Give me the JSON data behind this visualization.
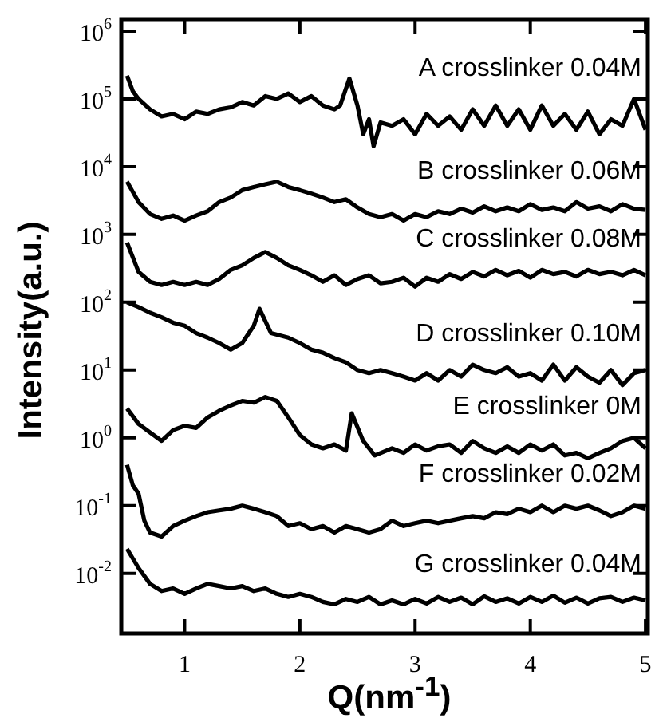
{
  "chart_data": {
    "type": "line",
    "xlabel": "Q(nm$^{-1}$)",
    "ylabel": "Intensity(a.u.)",
    "log": "y",
    "grid": false,
    "legend": "right",
    "marker": "none",
    "line_style": "solid",
    "xlim": [
      0.45,
      5.02
    ],
    "xticks": [
      1,
      2,
      3,
      4,
      5
    ],
    "ylim": [
      0.0013,
      1500000
    ],
    "yticks": [
      {
        "value": 0.01,
        "label": "10$^{-2}$"
      },
      {
        "value": 0.1,
        "label": "10$^{-1}$"
      },
      {
        "value": 1,
        "label": "10$^{0}$"
      },
      {
        "value": 10,
        "label": "10$^{1}$"
      },
      {
        "value": 100,
        "label": "10$^{2}$"
      },
      {
        "value": 1000,
        "label": "10$^{3}$"
      },
      {
        "value": 10000,
        "label": "10$^{4}$"
      },
      {
        "value": 100000,
        "label": "10$^{5}$"
      },
      {
        "value": 1000000,
        "label": "10$^{6}$"
      }
    ],
    "series": [
      {
        "name": "A crosslinker 0.04M",
        "color": "#000000",
        "x": [
          0.5,
          0.55,
          0.6,
          0.7,
          0.8,
          0.9,
          1.0,
          1.1,
          1.2,
          1.3,
          1.4,
          1.5,
          1.6,
          1.7,
          1.8,
          1.9,
          2.0,
          2.1,
          2.2,
          2.3,
          2.35,
          2.43,
          2.5,
          2.55,
          2.6,
          2.64,
          2.7,
          2.8,
          2.9,
          3.0,
          3.1,
          3.2,
          3.3,
          3.4,
          3.5,
          3.6,
          3.7,
          3.8,
          3.9,
          4.0,
          4.1,
          4.2,
          4.3,
          4.4,
          4.5,
          4.6,
          4.7,
          4.8,
          4.9,
          5.0
        ],
        "values": [
          220000,
          130000,
          100000,
          70000,
          55000,
          60000,
          50000,
          65000,
          60000,
          70000,
          75000,
          90000,
          80000,
          110000,
          100000,
          120000,
          90000,
          110000,
          80000,
          70000,
          80000,
          200000,
          80000,
          30000,
          50000,
          20000,
          45000,
          40000,
          50000,
          30000,
          60000,
          40000,
          55000,
          35000,
          70000,
          40000,
          80000,
          40000,
          70000,
          35000,
          80000,
          40000,
          60000,
          35000,
          65000,
          30000,
          50000,
          40000,
          100000,
          35000
        ]
      },
      {
        "name": "B crosslinker 0.06M",
        "color": "#000000",
        "x": [
          0.5,
          0.6,
          0.7,
          0.8,
          0.9,
          1.0,
          1.1,
          1.2,
          1.3,
          1.4,
          1.5,
          1.6,
          1.7,
          1.8,
          1.9,
          2.0,
          2.1,
          2.2,
          2.3,
          2.4,
          2.5,
          2.6,
          2.7,
          2.8,
          2.9,
          3.0,
          3.1,
          3.2,
          3.3,
          3.4,
          3.5,
          3.6,
          3.7,
          3.8,
          3.9,
          4.0,
          4.1,
          4.2,
          4.3,
          4.4,
          4.5,
          4.6,
          4.7,
          4.8,
          4.9,
          5.0
        ],
        "values": [
          6000,
          3000,
          2000,
          1700,
          1900,
          1600,
          1900,
          2200,
          3000,
          3500,
          4500,
          5000,
          5500,
          6000,
          5000,
          4500,
          4000,
          3500,
          3000,
          3300,
          2500,
          2000,
          1800,
          2000,
          1600,
          2000,
          1800,
          2200,
          2000,
          2400,
          2100,
          2600,
          2200,
          2500,
          2200,
          2800,
          2300,
          2500,
          2200,
          3000,
          2400,
          2600,
          2200,
          2800,
          2400,
          2300
        ]
      },
      {
        "name": "C crosslinker 0.08M",
        "color": "#000000",
        "x": [
          0.5,
          0.6,
          0.7,
          0.8,
          0.9,
          1.0,
          1.1,
          1.2,
          1.3,
          1.4,
          1.5,
          1.6,
          1.7,
          1.8,
          1.9,
          2.0,
          2.1,
          2.2,
          2.3,
          2.4,
          2.5,
          2.6,
          2.7,
          2.8,
          2.9,
          3.0,
          3.1,
          3.2,
          3.3,
          3.4,
          3.5,
          3.6,
          3.7,
          3.8,
          3.9,
          4.0,
          4.1,
          4.2,
          4.3,
          4.4,
          4.5,
          4.6,
          4.7,
          4.8,
          4.9,
          5.0
        ],
        "values": [
          760,
          280,
          200,
          180,
          200,
          180,
          200,
          180,
          220,
          300,
          350,
          450,
          550,
          450,
          350,
          300,
          250,
          200,
          250,
          180,
          220,
          250,
          190,
          200,
          230,
          170,
          230,
          200,
          260,
          220,
          280,
          240,
          300,
          250,
          290,
          230,
          300,
          260,
          280,
          240,
          300,
          260,
          280,
          250,
          300,
          250
        ]
      },
      {
        "name": "D crosslinker 0.10M",
        "color": "#000000",
        "x": [
          0.5,
          0.6,
          0.7,
          0.8,
          0.9,
          1.0,
          1.1,
          1.2,
          1.3,
          1.4,
          1.5,
          1.6,
          1.65,
          1.75,
          1.9,
          2.0,
          2.1,
          2.2,
          2.3,
          2.4,
          2.5,
          2.6,
          2.7,
          2.8,
          2.9,
          3.0,
          3.1,
          3.2,
          3.3,
          3.4,
          3.5,
          3.6,
          3.7,
          3.8,
          3.9,
          4.0,
          4.1,
          4.2,
          4.3,
          4.4,
          4.5,
          4.6,
          4.7,
          4.8,
          4.9,
          5.0
        ],
        "values": [
          100,
          85,
          70,
          60,
          50,
          45,
          35,
          30,
          25,
          20,
          25,
          45,
          80,
          35,
          30,
          25,
          20,
          18,
          15,
          13,
          10,
          9,
          10,
          9,
          8,
          7,
          9,
          7,
          10,
          8,
          12,
          10,
          9,
          11,
          8,
          9,
          7,
          12,
          7,
          11,
          8,
          6.5,
          10,
          6,
          9,
          10
        ]
      },
      {
        "name": "E crosslinker 0M",
        "color": "#000000",
        "x": [
          0.5,
          0.6,
          0.7,
          0.8,
          0.9,
          1.0,
          1.1,
          1.2,
          1.3,
          1.4,
          1.5,
          1.6,
          1.7,
          1.8,
          1.9,
          2.0,
          2.1,
          2.2,
          2.3,
          2.4,
          2.45,
          2.55,
          2.65,
          2.8,
          2.9,
          3.0,
          3.1,
          3.2,
          3.3,
          3.4,
          3.5,
          3.6,
          3.7,
          3.8,
          3.9,
          4.0,
          4.1,
          4.2,
          4.3,
          4.4,
          4.5,
          4.6,
          4.7,
          4.8,
          4.9,
          5.0
        ],
        "values": [
          2.7,
          1.6,
          1.2,
          0.9,
          1.3,
          1.5,
          1.4,
          2,
          2.5,
          3,
          3.5,
          3.3,
          4,
          3.5,
          2,
          1.1,
          0.8,
          0.7,
          0.8,
          0.65,
          2.3,
          0.9,
          0.55,
          0.7,
          0.6,
          0.8,
          0.65,
          0.75,
          0.8,
          0.6,
          0.9,
          0.7,
          0.6,
          0.75,
          0.6,
          0.8,
          0.65,
          0.8,
          0.55,
          0.6,
          0.5,
          0.6,
          0.7,
          0.9,
          1,
          0.7
        ]
      },
      {
        "name": "F crosslinker 0.02M",
        "color": "#000000",
        "x": [
          0.5,
          0.55,
          0.6,
          0.65,
          0.7,
          0.8,
          0.9,
          1.0,
          1.1,
          1.2,
          1.3,
          1.4,
          1.5,
          1.6,
          1.7,
          1.8,
          1.9,
          2.0,
          2.1,
          2.2,
          2.3,
          2.4,
          2.5,
          2.6,
          2.7,
          2.8,
          2.9,
          3.0,
          3.1,
          3.2,
          3.3,
          3.4,
          3.5,
          3.6,
          3.7,
          3.8,
          3.9,
          4.0,
          4.1,
          4.2,
          4.3,
          4.4,
          4.5,
          4.6,
          4.7,
          4.8,
          4.9,
          5.0
        ],
        "values": [
          0.4,
          0.2,
          0.15,
          0.06,
          0.04,
          0.035,
          0.05,
          0.06,
          0.07,
          0.08,
          0.085,
          0.09,
          0.1,
          0.09,
          0.08,
          0.07,
          0.05,
          0.055,
          0.045,
          0.05,
          0.04,
          0.05,
          0.045,
          0.04,
          0.045,
          0.06,
          0.05,
          0.055,
          0.06,
          0.055,
          0.06,
          0.065,
          0.07,
          0.065,
          0.08,
          0.075,
          0.09,
          0.08,
          0.1,
          0.08,
          0.1,
          0.09,
          0.1,
          0.085,
          0.07,
          0.08,
          0.1,
          0.09
        ]
      },
      {
        "name": "G crosslinker 0.04M",
        "color": "#000000",
        "x": [
          0.5,
          0.6,
          0.7,
          0.8,
          0.9,
          1.0,
          1.1,
          1.2,
          1.3,
          1.4,
          1.5,
          1.6,
          1.7,
          1.8,
          1.9,
          2.0,
          2.1,
          2.2,
          2.3,
          2.4,
          2.5,
          2.6,
          2.7,
          2.8,
          2.9,
          3.0,
          3.1,
          3.2,
          3.3,
          3.4,
          3.5,
          3.6,
          3.7,
          3.8,
          3.9,
          4.0,
          4.1,
          4.2,
          4.3,
          4.4,
          4.5,
          4.6,
          4.7,
          4.8,
          4.9,
          5.0
        ],
        "values": [
          0.023,
          0.012,
          0.007,
          0.0055,
          0.006,
          0.005,
          0.006,
          0.007,
          0.0065,
          0.006,
          0.0065,
          0.0055,
          0.006,
          0.005,
          0.0045,
          0.005,
          0.0045,
          0.0038,
          0.0035,
          0.0042,
          0.0038,
          0.0045,
          0.0035,
          0.004,
          0.0035,
          0.0042,
          0.0036,
          0.0045,
          0.0038,
          0.0044,
          0.0035,
          0.0046,
          0.0038,
          0.0043,
          0.0036,
          0.0045,
          0.0038,
          0.0047,
          0.0037,
          0.0044,
          0.0036,
          0.0043,
          0.0045,
          0.0038,
          0.0044,
          0.004
        ]
      }
    ]
  }
}
